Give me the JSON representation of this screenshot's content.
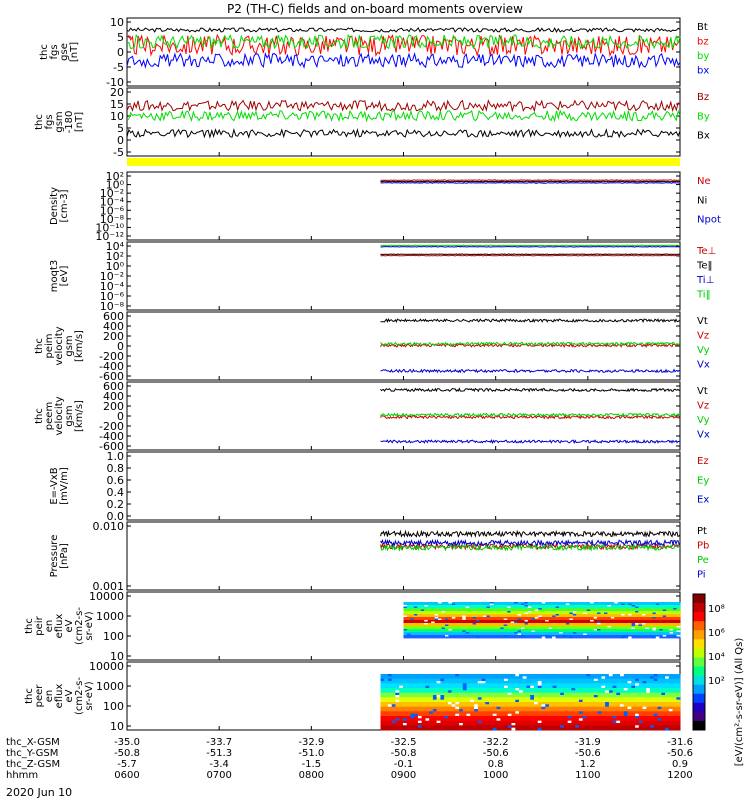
{
  "title": "P2 (TH-C) fields and on-board moments overview",
  "date_label": "2020 Jun 10",
  "orbit": {
    "rows": [
      {
        "label": "thc_X-GSM",
        "values": [
          "-35.0",
          "-33.7",
          "-32.9",
          "-32.5",
          "-32.2",
          "-31.9",
          "-31.6"
        ]
      },
      {
        "label": "thc_Y-GSM",
        "values": [
          "-50.8",
          "-51.3",
          "-51.0",
          "-50.8",
          "-50.6",
          "-50.6",
          "-50.6"
        ]
      },
      {
        "label": "thc_Z-GSM",
        "values": [
          "-5.7",
          "-3.4",
          "-1.5",
          "-0.1",
          "0.8",
          "1.2",
          "0.9"
        ]
      },
      {
        "label": "hhmm",
        "values": [
          "0600",
          "0700",
          "0800",
          "0900",
          "1000",
          "1100",
          "1200"
        ]
      }
    ]
  },
  "chart_data": [
    {
      "type": "line",
      "ylabel": [
        "thc",
        "fgs",
        "gse",
        "[nT]"
      ],
      "yticks": [
        "10",
        "5",
        "0",
        "-5",
        "-10"
      ],
      "ylim": [
        -10,
        10
      ],
      "series": [
        {
          "name": "Bt",
          "color": "#000000",
          "baseline": 6.5,
          "noise": 0.6
        },
        {
          "name": "bz",
          "color": "#ff0000",
          "baseline": 2,
          "noise": 3
        },
        {
          "name": "by",
          "color": "#00dd00",
          "baseline": 3,
          "noise": 2
        },
        {
          "name": "bx",
          "color": "#0000ff",
          "baseline": -2.5,
          "noise": 2
        }
      ]
    },
    {
      "type": "line",
      "ylabel": [
        "thc",
        "fgs",
        "gsm",
        "-180",
        "[nT]"
      ],
      "yticks": [
        "20",
        "15",
        "10",
        "5",
        "0",
        "-5"
      ],
      "ylim": [
        -7,
        20
      ],
      "series": [
        {
          "name": "Bz",
          "color": "#a00000",
          "baseline": 13,
          "noise": 2
        },
        {
          "name": "By",
          "color": "#00dd00",
          "baseline": 9,
          "noise": 2
        },
        {
          "name": "Bx",
          "color": "#000000",
          "baseline": 2,
          "noise": 1.5
        }
      ]
    },
    {
      "type": "line",
      "ylabel": [
        "Density",
        "[cm-3]"
      ],
      "yticks": [
        "10²",
        "10⁰",
        "10⁻²",
        "10⁻⁴",
        "10⁻⁶",
        "10⁻⁸",
        "10⁻¹⁰",
        "10⁻¹²"
      ],
      "series": [
        {
          "name": "Ne",
          "color": "#cc0000"
        },
        {
          "name": "Ni",
          "color": "#000000"
        },
        {
          "name": "Npot",
          "color": "#0000cc"
        }
      ],
      "data_start_hhmm": "0845"
    },
    {
      "type": "line",
      "ylabel": [
        "moqt3",
        "[eV]"
      ],
      "yticks": [
        "10⁴",
        "10²",
        "10⁰",
        "10⁻²",
        "10⁻⁴",
        "10⁻⁶",
        "10⁻⁸"
      ],
      "series": [
        {
          "name": "Te⊥",
          "color": "#cc0000"
        },
        {
          "name": "Te‖",
          "color": "#000000"
        },
        {
          "name": "Ti⊥",
          "color": "#0000cc"
        },
        {
          "name": "Ti‖",
          "color": "#00cc00"
        }
      ],
      "data_start_hhmm": "0845"
    },
    {
      "type": "line",
      "ylabel": [
        "thc",
        "peim",
        "velocity",
        "gsm",
        "[km/s]"
      ],
      "yticks": [
        "600",
        "400",
        "200",
        "0",
        "-200",
        "-400",
        "-600"
      ],
      "ylim": [
        -600,
        600
      ],
      "series": [
        {
          "name": "Vt",
          "color": "#000000",
          "baseline": 450
        },
        {
          "name": "Vz",
          "color": "#cc0000",
          "baseline": 10
        },
        {
          "name": "Vy",
          "color": "#00cc00",
          "baseline": 40
        },
        {
          "name": "Vx",
          "color": "#0000cc",
          "baseline": -440
        }
      ],
      "data_start_hhmm": "0845"
    },
    {
      "type": "line",
      "ylabel": [
        "thc",
        "peem",
        "velocity",
        "gsm",
        "[km/s]"
      ],
      "yticks": [
        "600",
        "400",
        "200",
        "0",
        "-200",
        "-400",
        "-600"
      ],
      "ylim": [
        -600,
        600
      ],
      "series": [
        {
          "name": "Vt",
          "color": "#000000",
          "baseline": 460
        },
        {
          "name": "Vz",
          "color": "#cc0000",
          "baseline": -20
        },
        {
          "name": "Vy",
          "color": "#00cc00",
          "baseline": 20
        },
        {
          "name": "Vx",
          "color": "#0000cc",
          "baseline": -450
        }
      ],
      "data_start_hhmm": "0845"
    },
    {
      "type": "line",
      "ylabel": [
        "E=-VxB",
        "[mV/m]"
      ],
      "yticks": [
        "1.0",
        "0.8",
        "0.6",
        "0.4",
        "0.2",
        "0.0"
      ],
      "series": [
        {
          "name": "Ez",
          "color": "#cc0000"
        },
        {
          "name": "Ey",
          "color": "#00cc00"
        },
        {
          "name": "Ex",
          "color": "#0000cc"
        }
      ]
    },
    {
      "type": "line",
      "ylabel": [
        "Pressure",
        "[nPa]"
      ],
      "yticks": [
        "0.010",
        "0.001"
      ],
      "series": [
        {
          "name": "Pt",
          "color": "#000000",
          "baseline": 0.04
        },
        {
          "name": "Pb",
          "color": "#cc0000",
          "baseline": 0.015
        },
        {
          "name": "Pe",
          "color": "#00cc00",
          "baseline": 0.014
        },
        {
          "name": "Pi",
          "color": "#0000cc",
          "baseline": 0.02
        }
      ],
      "data_start_hhmm": "0845"
    },
    {
      "type": "heatmap",
      "ylabel": [
        "thc",
        "peir",
        "en",
        "eflux",
        "eV",
        "(cm2-s-",
        "sr-eV)"
      ],
      "yticks": [
        "10000",
        "1000",
        "100",
        "10"
      ],
      "data_start_hhmm": "0900"
    },
    {
      "type": "heatmap",
      "ylabel": [
        "thc",
        "peer",
        "en",
        "eflux",
        "eV",
        "(cm2-s-",
        "sr-eV)"
      ],
      "yticks": [
        "10000",
        "1000",
        "100",
        "10"
      ],
      "data_start_hhmm": "0845"
    }
  ],
  "colorbar": {
    "label": "[eV/(cm²-s-sr-eV)] (All Qs)",
    "ticks": [
      "10⁸",
      "10⁶",
      "10⁴",
      "10²"
    ]
  }
}
